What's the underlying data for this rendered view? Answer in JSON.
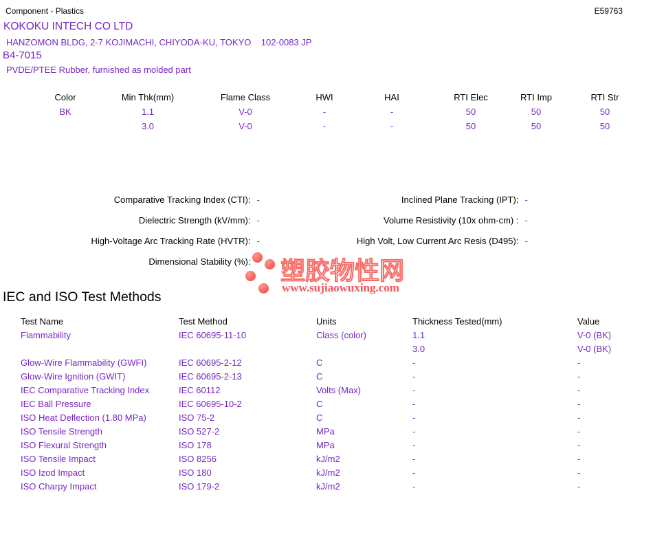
{
  "colors": {
    "accent_purple": "#7627c3",
    "text_black": "#000000",
    "watermark_red": "#f75a58",
    "watermark_text_red": "#f96b66"
  },
  "header": {
    "doc_type": "Component - Plastics",
    "file_number": "E59763",
    "company": "KOKOKU INTECH CO LTD",
    "address": "HANZOMON BLDG, 2-7 KOJIMACHI, CHIYODA-KU, TOKYO    102-0083 JP",
    "grade": "B4-7015",
    "material": "PVDE/PTEE Rubber, furnished as molded part"
  },
  "ratings_table": {
    "headers": [
      "Color",
      "Min Thk(mm)",
      "Flame Class",
      "HWI",
      "HAI",
      "RTI Elec",
      "RTI Imp",
      "RTI Str"
    ],
    "rows": [
      [
        "BK",
        "1.1",
        "V-0",
        "-",
        "-",
        "50",
        "50",
        "50"
      ],
      [
        "",
        "3.0",
        "V-0",
        "-",
        "-",
        "50",
        "50",
        "50"
      ]
    ]
  },
  "electrical_properties": {
    "left": [
      {
        "label": "Comparative Tracking Index (CTI):",
        "value": "-"
      },
      {
        "label": "Dielectric Strength (kV/mm):",
        "value": "-"
      },
      {
        "label": "High-Voltage Arc Tracking Rate (HVTR):",
        "value": "-"
      },
      {
        "label": "Dimensional Stability (%):",
        "value": "-"
      }
    ],
    "right": [
      {
        "label": "Inclined Plane Tracking (IPT):",
        "value": "-"
      },
      {
        "label": "Volume Resistivity (10x ohm-cm) :",
        "value": "-"
      },
      {
        "label": "High Volt, Low Current Arc Resis (D495):",
        "value": "-"
      }
    ]
  },
  "watermark": {
    "site_name": "塑胶物性网",
    "site_url": "www.sujiaowuxing.com"
  },
  "test_methods": {
    "title": "IEC and ISO Test Methods",
    "headers": [
      "Test Name",
      "Test Method",
      "Units",
      "Thickness Tested(mm)",
      "Value"
    ],
    "rows": [
      [
        "Flammability",
        "IEC 60695-11-10",
        "Class (color)",
        "1.1",
        "V-0 (BK)"
      ],
      [
        "",
        "",
        "",
        "3.0",
        "V-0 (BK)"
      ],
      [
        "Glow-Wire Flammability (GWFI)",
        "IEC 60695-2-12",
        "C",
        "-",
        "-"
      ],
      [
        "Glow-Wire Ignition (GWIT)",
        "IEC 60695-2-13",
        "C",
        "-",
        "-"
      ],
      [
        "IEC Comparative Tracking Index",
        "IEC 60112",
        "Volts (Max)",
        "-",
        "-"
      ],
      [
        "IEC Ball Pressure",
        "IEC 60695-10-2",
        "C",
        "-",
        "-"
      ],
      [
        "ISO Heat Deflection (1.80 MPa)",
        "ISO 75-2",
        "C",
        "-",
        "-"
      ],
      [
        "ISO Tensile Strength",
        "ISO 527-2",
        "MPa",
        "-",
        "-"
      ],
      [
        "ISO Flexural Strength",
        "ISO 178",
        "MPa",
        "-",
        "-"
      ],
      [
        "ISO Tensile Impact",
        "ISO 8256",
        "kJ/m2",
        "-",
        "-"
      ],
      [
        "ISO Izod Impact",
        "ISO 180",
        "kJ/m2",
        "-",
        "-"
      ],
      [
        "ISO Charpy Impact",
        "ISO 179-2",
        "kJ/m2",
        "-",
        "-"
      ]
    ]
  }
}
